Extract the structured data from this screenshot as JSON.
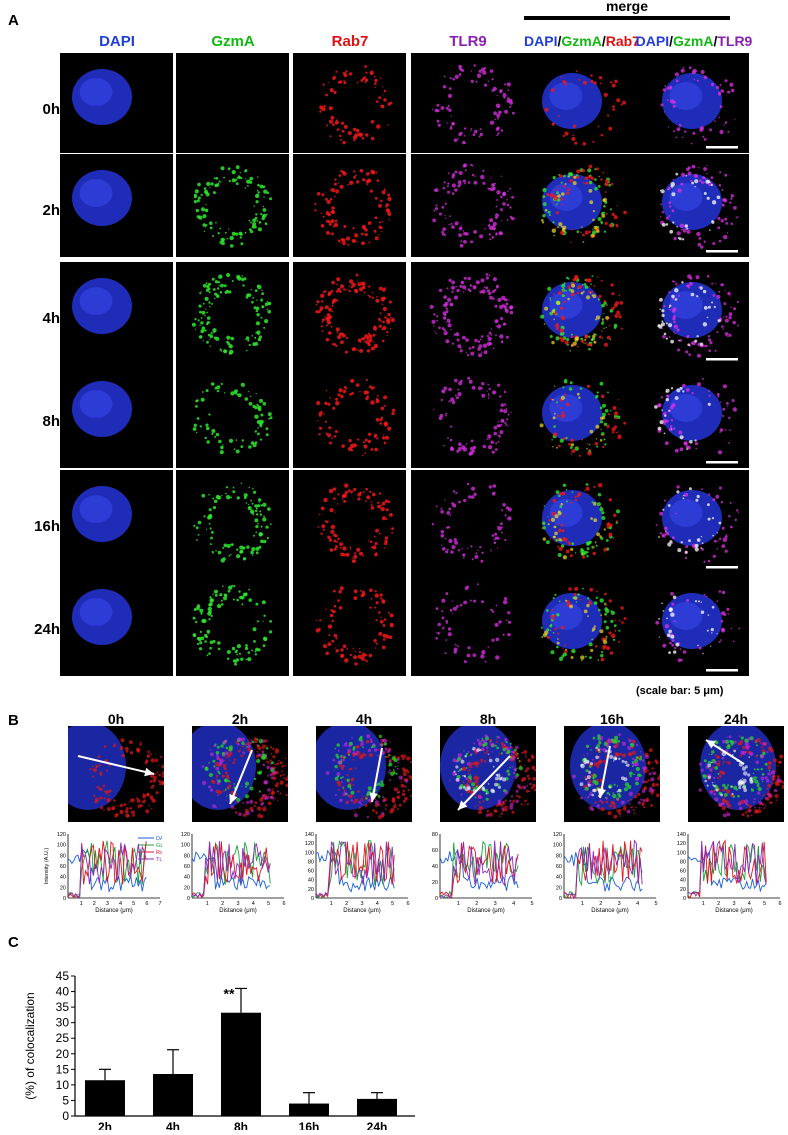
{
  "panel_a": {
    "letter": "A",
    "merge_title": "merge",
    "columns": [
      {
        "label": "DAPI",
        "color": "#1f3fd8"
      },
      {
        "label": "GzmA",
        "color": "#12b812"
      },
      {
        "label": "Rab7",
        "color": "#e01010"
      },
      {
        "label": "TLR9",
        "color": "#8a22b0"
      }
    ],
    "merge1": {
      "p1": "DAPI",
      "s1": "/",
      "p2": "GzmA",
      "s2": "/",
      "p3": "Rab7"
    },
    "merge2": {
      "p1": "DAPI",
      "s1": "/",
      "p2": "GzmA",
      "s2": "/",
      "p3": "TLR9"
    },
    "rows": [
      "0h",
      "2h",
      "4h",
      "8h",
      "16h",
      "24h"
    ],
    "scale_note": "(scale bar: 5 μm)"
  },
  "panel_b": {
    "letter": "B",
    "timepoints": [
      "0h",
      "2h",
      "4h",
      "8h",
      "16h",
      "24h"
    ],
    "ylabel": "Intensity (A.U.)",
    "xlabel": "Distance (μm)",
    "legend": [
      "DAPI",
      "GzmA",
      "Rab7",
      "TLR9"
    ],
    "series_colors": {
      "DAPI": "#1a5fd8",
      "GzmA": "#1aa53a",
      "Rab7": "#e3141e",
      "TLR9": "#8a2ab8"
    },
    "plots": [
      {
        "ymax": 120,
        "yticks": [
          "0",
          "20",
          "40",
          "60",
          "80",
          "100",
          "120"
        ],
        "xticks": [
          "1",
          "2",
          "3",
          "4",
          "5",
          "6",
          "7"
        ],
        "xmax": 7
      },
      {
        "ymax": 120,
        "yticks": [
          "0",
          "20",
          "40",
          "60",
          "80",
          "100",
          "120"
        ],
        "xticks": [
          "1",
          "2",
          "3",
          "4",
          "5",
          "6"
        ],
        "xmax": 6
      },
      {
        "ymax": 140,
        "yticks": [
          "0",
          "20",
          "40",
          "60",
          "80",
          "100",
          "120",
          "140"
        ],
        "xticks": [
          "1",
          "2",
          "3",
          "4",
          "5",
          "6"
        ],
        "xmax": 6
      },
      {
        "ymax": 80,
        "yticks": [
          "0",
          "20",
          "40",
          "60",
          "80"
        ],
        "xticks": [
          "1",
          "2",
          "3",
          "4",
          "5"
        ],
        "xmax": 5
      },
      {
        "ymax": 120,
        "yticks": [
          "0",
          "20",
          "40",
          "60",
          "80",
          "100",
          "120"
        ],
        "xticks": [
          "1",
          "2",
          "3",
          "4",
          "5"
        ],
        "xmax": 5
      },
      {
        "ymax": 140,
        "yticks": [
          "0",
          "20",
          "40",
          "60",
          "80",
          "100",
          "120",
          "140"
        ],
        "xticks": [
          "1",
          "2",
          "3",
          "4",
          "5",
          "6"
        ],
        "xmax": 6
      }
    ]
  },
  "panel_c": {
    "letter": "C",
    "significance": "**",
    "chart_data": {
      "type": "bar",
      "categories": [
        "2h",
        "4h",
        "8h",
        "16h",
        "24h"
      ],
      "values": [
        11.5,
        13.5,
        33.2,
        4.0,
        5.5
      ],
      "errors": [
        3.5,
        7.8,
        7.8,
        3.5,
        2.0
      ],
      "ylabel": "(%) of colocalization",
      "ylim": [
        0,
        45
      ],
      "yticks": [
        "0",
        "5",
        "10",
        "15",
        "20",
        "25",
        "30",
        "35",
        "40",
        "45"
      ],
      "annotation": {
        "category": "8h",
        "text": "**"
      }
    }
  }
}
